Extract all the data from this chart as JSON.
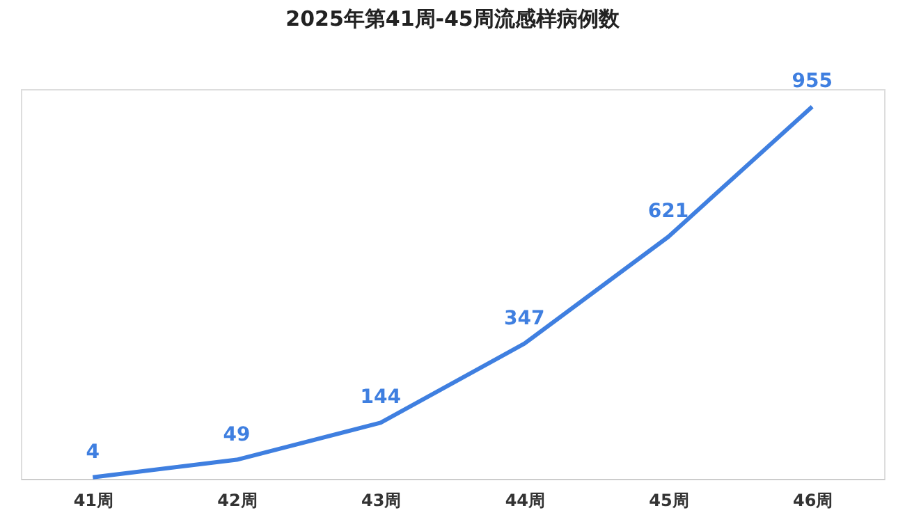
{
  "chart_data": {
    "type": "line",
    "title": "2025年第41周-45周流感样病例数",
    "categories": [
      "41周",
      "42周",
      "43周",
      "44周",
      "45周",
      "46周"
    ],
    "series": [
      {
        "color": "#3f7fe0",
        "values": [
          4,
          49,
          144,
          347,
          621,
          955
        ]
      }
    ],
    "data_labels": true,
    "tick_labels": "x",
    "grid": false,
    "legend": false,
    "marker": "none",
    "line_style": "solid"
  }
}
